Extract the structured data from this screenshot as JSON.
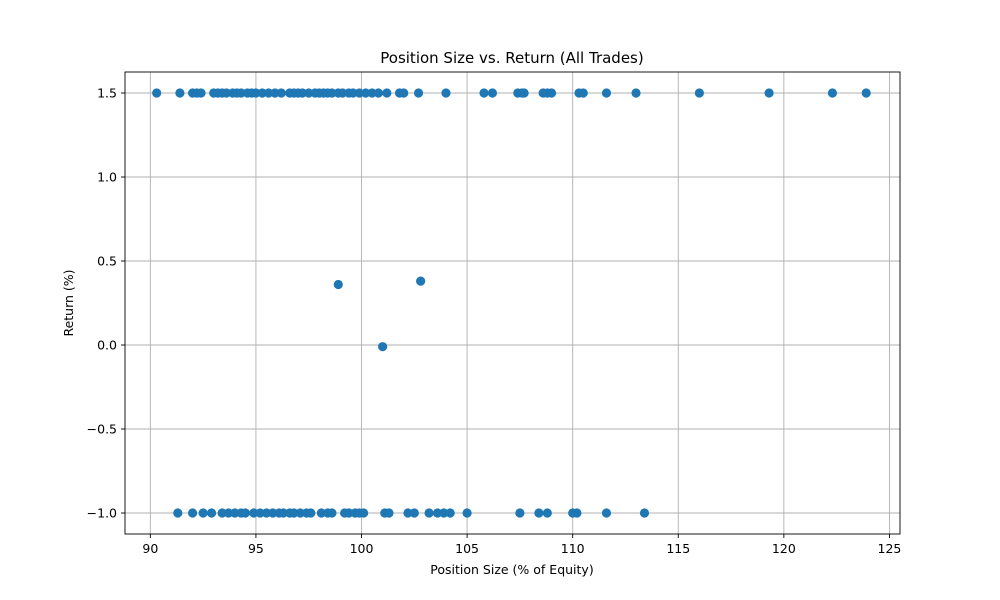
{
  "chart_data": {
    "type": "scatter",
    "title": "Position Size vs. Return (All Trades)",
    "xlabel": "Position Size (% of Equity)",
    "ylabel": "Return (%)",
    "xlim": [
      88.8,
      125.5
    ],
    "ylim": [
      -1.125,
      1.625
    ],
    "xticks": [
      90,
      95,
      100,
      105,
      110,
      115,
      120,
      125
    ],
    "xtick_labels": [
      "90",
      "95",
      "100",
      "105",
      "110",
      "115",
      "120",
      "125"
    ],
    "yticks": [
      -1.0,
      -0.5,
      0.0,
      0.5,
      1.0,
      1.5
    ],
    "ytick_labels": [
      "−1.0",
      "−0.5",
      "0.0",
      "0.5",
      "1.0",
      "1.5"
    ],
    "grid": true,
    "point_color": "#1f77b4",
    "series": [
      {
        "x": [
          90.3,
          91.4,
          92.0,
          92.2,
          92.4,
          93.0,
          93.2,
          93.4,
          93.6,
          93.9,
          94.1,
          94.3,
          94.6,
          94.8,
          95.0,
          95.3,
          95.6,
          95.9,
          96.2,
          96.6,
          96.8,
          97.0,
          97.2,
          97.5,
          97.8,
          98.0,
          98.2,
          98.4,
          98.6,
          98.9,
          99.1,
          99.4,
          99.6,
          99.9,
          100.2,
          100.5,
          100.8,
          101.2,
          101.8,
          102.0,
          102.7,
          104.0,
          105.8,
          106.2,
          107.4,
          107.6,
          107.7,
          108.6,
          108.8,
          109.0,
          110.3,
          110.5,
          111.6,
          113.0,
          116.0,
          119.3,
          122.3,
          123.9
        ],
        "y": [
          1.5,
          1.5,
          1.5,
          1.5,
          1.5,
          1.5,
          1.5,
          1.5,
          1.5,
          1.5,
          1.5,
          1.5,
          1.5,
          1.5,
          1.5,
          1.5,
          1.5,
          1.5,
          1.5,
          1.5,
          1.5,
          1.5,
          1.5,
          1.5,
          1.5,
          1.5,
          1.5,
          1.5,
          1.5,
          1.5,
          1.5,
          1.5,
          1.5,
          1.5,
          1.5,
          1.5,
          1.5,
          1.5,
          1.5,
          1.5,
          1.5,
          1.5,
          1.5,
          1.5,
          1.5,
          1.5,
          1.5,
          1.5,
          1.5,
          1.5,
          1.5,
          1.5,
          1.5,
          1.5,
          1.5,
          1.5,
          1.5,
          1.5
        ]
      },
      {
        "x": [
          98.9,
          102.8,
          101.0
        ],
        "y": [
          0.36,
          0.38,
          -0.01
        ]
      },
      {
        "x": [
          91.3,
          92.0,
          92.5,
          92.9,
          93.4,
          93.7,
          94.0,
          94.3,
          94.5,
          94.9,
          95.2,
          95.5,
          95.8,
          96.1,
          96.3,
          96.6,
          96.8,
          97.1,
          97.4,
          97.6,
          98.1,
          98.4,
          98.6,
          99.2,
          99.4,
          99.7,
          99.9,
          100.1,
          101.1,
          101.3,
          102.2,
          102.5,
          103.2,
          103.6,
          103.9,
          104.2,
          105.0,
          107.5,
          108.4,
          108.8,
          110.0,
          110.2,
          111.6,
          113.4
        ],
        "y": [
          -1.0,
          -1.0,
          -1.0,
          -1.0,
          -1.0,
          -1.0,
          -1.0,
          -1.0,
          -1.0,
          -1.0,
          -1.0,
          -1.0,
          -1.0,
          -1.0,
          -1.0,
          -1.0,
          -1.0,
          -1.0,
          -1.0,
          -1.0,
          -1.0,
          -1.0,
          -1.0,
          -1.0,
          -1.0,
          -1.0,
          -1.0,
          -1.0,
          -1.0,
          -1.0,
          -1.0,
          -1.0,
          -1.0,
          -1.0,
          -1.0,
          -1.0,
          -1.0,
          -1.0,
          -1.0,
          -1.0,
          -1.0,
          -1.0,
          -1.0,
          -1.0
        ]
      }
    ]
  }
}
